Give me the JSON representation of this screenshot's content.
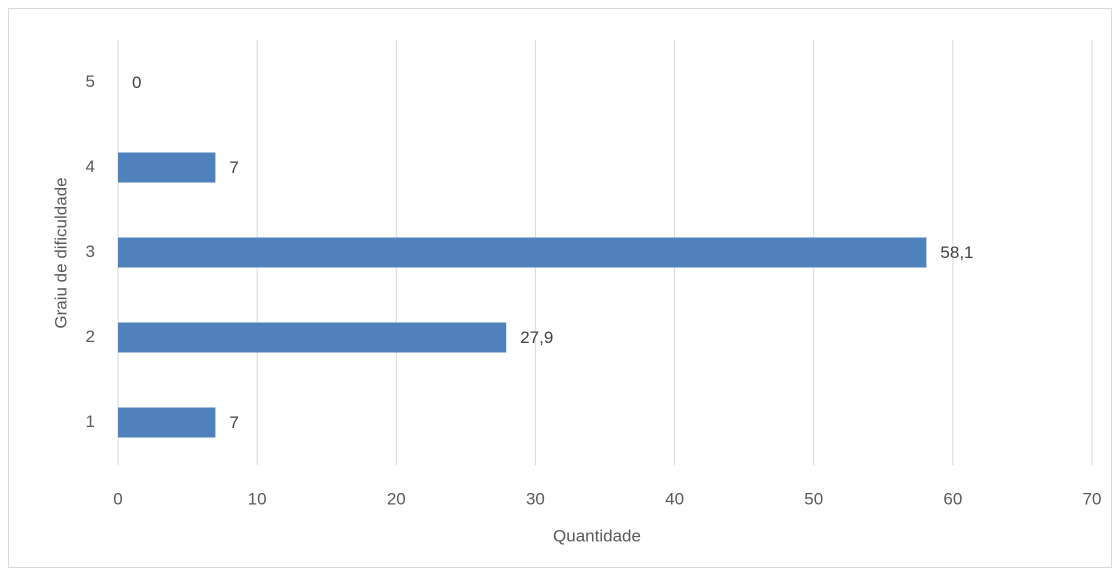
{
  "chart_data": {
    "type": "bar",
    "orientation": "horizontal",
    "categories": [
      "1",
      "2",
      "3",
      "4",
      "5"
    ],
    "values": [
      7,
      27.9,
      58.1,
      7,
      0
    ],
    "value_labels": [
      "7",
      "27,9",
      "58,1",
      "7",
      "0"
    ],
    "color": "#4f81bd",
    "xlim": [
      0,
      70
    ],
    "xticks": [
      0,
      10,
      20,
      30,
      40,
      50,
      60,
      70
    ],
    "xlabel": "Quantidade",
    "ylabel": "Graiu de dificuldade",
    "grid": true
  }
}
